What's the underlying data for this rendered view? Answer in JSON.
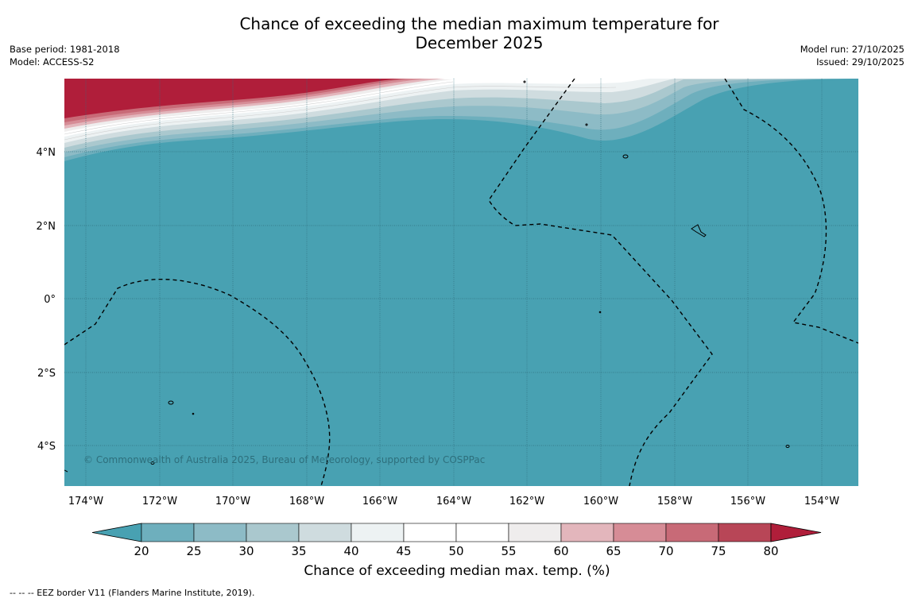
{
  "title_line1": "Chance of exceeding the median maximum temperature for",
  "title_line2": "December 2025",
  "meta_left": {
    "base_period": "Base period: 1981-2018",
    "model": "Model: ACCESS-S2"
  },
  "meta_right": {
    "model_run": "Model run: 27/10/2025",
    "issued": "Issued: 29/10/2025"
  },
  "map": {
    "lat_labels": [
      "4°N",
      "2°N",
      "0°",
      "2°S",
      "4°S"
    ],
    "lon_labels": [
      "174°W",
      "172°W",
      "170°W",
      "168°W",
      "166°W",
      "164°W",
      "162°W",
      "160°W",
      "158°W",
      "156°W",
      "154°W"
    ],
    "copyright": "© Commonwealth of Australia 2025, Bureau of Meteorology, supported by COSPPac",
    "background_color": "#48a1b2"
  },
  "colorbar": {
    "ticks": [
      "20",
      "25",
      "30",
      "35",
      "40",
      "45",
      "50",
      "55",
      "60",
      "65",
      "70",
      "75",
      "80"
    ],
    "colors": [
      "#48a1b2",
      "#6eafbd",
      "#8dbbc6",
      "#aac8ce",
      "#cfdcdf",
      "#edf2f3",
      "#ffffff",
      "#ffffff",
      "#efeded",
      "#e3b6bc",
      "#d68c96",
      "#c86a77",
      "#b84657",
      "#b01e3a"
    ],
    "label": "Chance of exceeding median max. temp. (%)"
  },
  "footer": "--  --  -- EEZ border V11 (Flanders Marine Institute, 2019)."
}
